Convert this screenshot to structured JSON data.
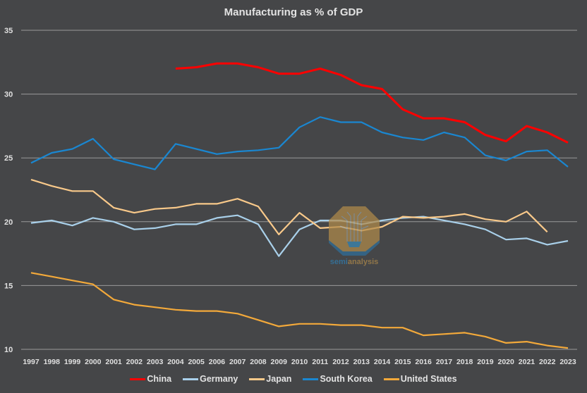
{
  "chart_data": {
    "type": "line",
    "title": "Manufacturing as % of GDP",
    "xlabel": "",
    "ylabel": "",
    "ylim": [
      10,
      35
    ],
    "yticks": [
      "10",
      "15",
      "20",
      "25",
      "30",
      "35"
    ],
    "grid": true,
    "legend_position": "bottom",
    "x": [
      "1997",
      "1998",
      "1999",
      "2000",
      "2001",
      "2002",
      "2003",
      "2004",
      "2005",
      "2006",
      "2007",
      "2008",
      "2009",
      "2010",
      "2011",
      "2012",
      "2013",
      "2014",
      "2015",
      "2016",
      "2017",
      "2018",
      "2019",
      "2020",
      "2021",
      "2022",
      "2023"
    ],
    "series": [
      {
        "name": "China",
        "color": "#ff0000",
        "values": [
          null,
          null,
          null,
          null,
          null,
          null,
          null,
          32.0,
          32.1,
          32.4,
          32.4,
          32.1,
          31.6,
          31.6,
          32.0,
          31.5,
          30.7,
          30.4,
          28.8,
          28.1,
          28.1,
          27.8,
          26.8,
          26.3,
          27.5,
          27.0,
          26.2
        ]
      },
      {
        "name": "Germany",
        "color": "#a9d0ea",
        "values": [
          19.9,
          20.1,
          19.7,
          20.3,
          20.0,
          19.4,
          19.5,
          19.8,
          19.8,
          20.3,
          20.5,
          19.8,
          17.3,
          19.4,
          20.1,
          20.1,
          19.8,
          20.1,
          20.3,
          20.4,
          20.1,
          19.8,
          19.4,
          18.6,
          18.7,
          18.2,
          18.5
        ]
      },
      {
        "name": "Japan",
        "color": "#f9c98a",
        "values": [
          23.3,
          22.8,
          22.4,
          22.4,
          21.1,
          20.7,
          21.0,
          21.1,
          21.4,
          21.4,
          21.8,
          21.2,
          19.0,
          20.7,
          19.5,
          19.6,
          19.3,
          19.6,
          20.4,
          20.3,
          20.4,
          20.6,
          20.2,
          20.0,
          20.8,
          19.2,
          null
        ]
      },
      {
        "name": "South Korea",
        "color": "#1a87d1",
        "values": [
          24.6,
          25.4,
          25.7,
          26.5,
          24.9,
          24.5,
          24.1,
          26.1,
          25.7,
          25.3,
          25.5,
          25.6,
          25.8,
          27.4,
          28.2,
          27.8,
          27.8,
          27.0,
          26.6,
          26.4,
          27.0,
          26.6,
          25.2,
          24.8,
          25.5,
          25.6,
          24.3
        ]
      },
      {
        "name": "United States",
        "color": "#f3a93a",
        "values": [
          16.0,
          15.7,
          15.4,
          15.1,
          13.9,
          13.5,
          13.3,
          13.1,
          13.0,
          13.0,
          12.8,
          12.3,
          11.8,
          12.0,
          12.0,
          11.9,
          11.9,
          11.7,
          11.7,
          11.1,
          11.2,
          11.3,
          11.0,
          10.5,
          10.6,
          10.3,
          10.1
        ]
      }
    ],
    "annotations": [
      "semianalysis"
    ]
  },
  "watermark": {
    "text_part1": "semi",
    "text_part2": "analysis",
    "color1": "#2f7fb3",
    "color2": "#b08a4a"
  },
  "colors": {
    "background": "#454648",
    "gridline": "#9a9a9a",
    "text": "#e0e0e0"
  }
}
